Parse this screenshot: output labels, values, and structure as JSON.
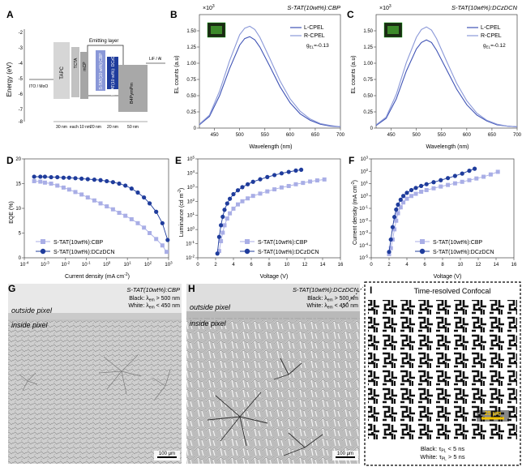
{
  "panels": {
    "A": {
      "letter": "A",
      "ylabel": "Energy (eV)",
      "yticks": [
        "-2",
        "-3",
        "-4",
        "-5",
        "-6",
        "-7",
        "-8"
      ],
      "ylim": [
        -8,
        -2
      ],
      "anode_label": "ITO / MoO",
      "cathode_label": "LiF / Al",
      "emitting_layer_label": "Emitting layer",
      "layers": [
        "TAPC",
        "TCTA",
        "mCP",
        "S-TAT(10 wt%):CBP",
        "S-TAT(10 wt%): DCzDCN",
        "B4PymPm"
      ],
      "thicknesses": [
        "30 nm",
        "each 10 nm",
        "20 nm",
        "20 nm",
        "50 nm"
      ],
      "colors": {
        "gray_light": "#d6d6d6",
        "gray_mid": "#c2c2c2",
        "gray_dark": "#a6a6a6",
        "cbp_blue": "#8a98d8",
        "dcz_blue": "#1f3c9c",
        "etl_gray": "#a8a8a8"
      }
    },
    "B": {
      "letter": "B",
      "title": "S-TAT(10wt%):CBP",
      "exponent": "×10",
      "exponent_power": "3",
      "ylabel": "EL counts (a.u)",
      "xlabel": "Wavelength (nm)",
      "legend": [
        "L-CPEL",
        "R-CPEL"
      ],
      "g_el_label": "g",
      "g_el_sub": "EL",
      "g_el_value": "=-0.13"
    },
    "C": {
      "letter": "C",
      "title": "S-TAT(10wt%):DCzDCN",
      "exponent": "×10",
      "exponent_power": "3",
      "ylabel": "EL counts (a.u)",
      "xlabel": "Wavelength (nm)",
      "legend": [
        "L-CPEL",
        "R-CPEL"
      ],
      "g_el_label": "g",
      "g_el_sub": "EL",
      "g_el_value": "=-0.12"
    },
    "D": {
      "letter": "D",
      "ylabel": "EQE (%)",
      "xlabel": "Current density (mA cm",
      "xlabel_sup": "-2",
      "legend": [
        "S-TAT(10wt%):CBP",
        "S-TAT(10wt%):DCzDCN"
      ]
    },
    "E": {
      "letter": "E",
      "ylabel": "Luminance (cd m",
      "ylabel_sup": "-2",
      "xlabel": "Voltage (V)",
      "legend": [
        "S-TAT(10wt%):CBP",
        "S-TAT(10wt%):DCzDCN"
      ]
    },
    "F": {
      "letter": "F",
      "ylabel": "Current density (mA cm",
      "ylabel_sup": "-2",
      "xlabel": "Voltage (V)",
      "legend": [
        "S-TAT(10wt%):CBP",
        "S-TAT(10wt%):DCzDCN"
      ]
    },
    "G": {
      "letter": "G",
      "title": "S-TAT(10wt%):CBP",
      "black_text": "Black: λ",
      "black_sub": "em",
      "black_value": " > 500 nm",
      "white_text": "White: λ",
      "white_sub": "em",
      "white_value": " < 450 nm",
      "outside": "outside pixel",
      "inside": "inside pixel",
      "scalebar": "100 μm"
    },
    "H": {
      "letter": "H",
      "title": "S-TAT(10wt%):DCzDCN",
      "black_text": "Black: λ",
      "black_sub": "em",
      "black_value": " > 500 nm",
      "white_text": "White: λ",
      "white_sub": "em",
      "white_value": " < 450 nm",
      "outside": "outside pixel",
      "inside": "inside pixel",
      "scalebar": "100 μm"
    },
    "I": {
      "letter": "I",
      "title": "Time-resolved Confocal",
      "black_text": "Black: τ",
      "black_sub": "PL",
      "black_value": " < 5 ns",
      "white_text": "White: τ",
      "white_sub": "PL",
      "white_value": " > 5 ns",
      "scalebar": "25 μm",
      "scalebar_color": "#f2c200"
    }
  },
  "colors": {
    "cbp": "#a9aee6",
    "dcz": "#1f3c9c",
    "lcpel": "#3f53b5",
    "rcpel": "#8a98d8"
  },
  "chart_data": [
    {
      "panel": "B",
      "type": "line",
      "xlabel": "Wavelength (nm)",
      "ylabel": "EL counts (a.u)",
      "xlim": [
        420,
        700
      ],
      "ylim": [
        0,
        1.75
      ],
      "xticks": [
        450,
        500,
        550,
        600,
        650,
        700
      ],
      "yticks": [
        0,
        0.25,
        0.5,
        0.75,
        1.0,
        1.25,
        1.5
      ],
      "x": [
        420,
        440,
        460,
        480,
        500,
        510,
        520,
        530,
        540,
        560,
        580,
        600,
        620,
        640,
        660,
        680,
        700
      ],
      "series": [
        {
          "name": "L-CPEL",
          "values": [
            0.05,
            0.18,
            0.5,
            0.92,
            1.28,
            1.38,
            1.41,
            1.36,
            1.25,
            0.95,
            0.64,
            0.39,
            0.22,
            0.12,
            0.06,
            0.03,
            0.02
          ]
        },
        {
          "name": "R-CPEL",
          "values": [
            0.06,
            0.2,
            0.57,
            1.04,
            1.44,
            1.54,
            1.57,
            1.52,
            1.4,
            1.07,
            0.73,
            0.45,
            0.26,
            0.14,
            0.07,
            0.04,
            0.02
          ]
        }
      ]
    },
    {
      "panel": "C",
      "type": "line",
      "xlabel": "Wavelength (nm)",
      "ylabel": "EL counts (a.u)",
      "xlim": [
        420,
        700
      ],
      "ylim": [
        0,
        1.75
      ],
      "xticks": [
        450,
        500,
        550,
        600,
        650,
        700
      ],
      "yticks": [
        0,
        0.25,
        0.5,
        0.75,
        1.0,
        1.25,
        1.5
      ],
      "x": [
        420,
        440,
        460,
        480,
        500,
        510,
        520,
        530,
        540,
        560,
        580,
        600,
        620,
        640,
        660,
        680,
        700
      ],
      "series": [
        {
          "name": "L-CPEL",
          "values": [
            0.04,
            0.15,
            0.45,
            0.88,
            1.22,
            1.32,
            1.36,
            1.32,
            1.2,
            0.9,
            0.6,
            0.36,
            0.2,
            0.11,
            0.05,
            0.03,
            0.02
          ]
        },
        {
          "name": "R-CPEL",
          "values": [
            0.05,
            0.17,
            0.52,
            1.01,
            1.4,
            1.52,
            1.56,
            1.51,
            1.38,
            1.03,
            0.69,
            0.42,
            0.23,
            0.12,
            0.06,
            0.03,
            0.02
          ]
        }
      ]
    },
    {
      "panel": "D",
      "type": "scatter",
      "xscale": "log",
      "xlabel": "Current density (mA cm-2)",
      "ylabel": "EQE (%)",
      "xlim": [
        0.0001,
        1000
      ],
      "ylim": [
        0,
        20
      ],
      "xticks": [
        "10-4",
        "10-3",
        "10-2",
        "10-1",
        "10^0",
        "10^1",
        "10^2",
        "10^3"
      ],
      "yticks": [
        0,
        5,
        10,
        15,
        20
      ],
      "series": [
        {
          "name": "S-TAT(10wt%):CBP",
          "x": [
            0.0003,
            0.0006,
            0.001,
            0.002,
            0.004,
            0.008,
            0.015,
            0.03,
            0.06,
            0.12,
            0.25,
            0.5,
            1,
            2,
            4,
            8,
            16,
            32,
            64,
            120,
            250,
            500,
            800
          ],
          "y": [
            15.5,
            15.4,
            15.2,
            15.0,
            14.6,
            14.2,
            13.8,
            13.3,
            12.8,
            12.2,
            11.6,
            11.0,
            10.4,
            9.8,
            9.1,
            8.5,
            7.8,
            7.0,
            6.1,
            5.0,
            3.8,
            2.5,
            1.2
          ]
        },
        {
          "name": "S-TAT(10wt%):DCzDCN",
          "x": [
            0.0003,
            0.0006,
            0.001,
            0.002,
            0.004,
            0.008,
            0.015,
            0.03,
            0.06,
            0.12,
            0.25,
            0.5,
            1,
            2,
            4,
            8,
            16,
            32,
            64,
            120,
            250,
            500,
            900
          ],
          "y": [
            16.4,
            16.4,
            16.4,
            16.3,
            16.3,
            16.2,
            16.2,
            16.1,
            16.0,
            15.9,
            15.8,
            15.7,
            15.5,
            15.3,
            15.0,
            14.6,
            14.0,
            13.2,
            12.2,
            11.0,
            9.3,
            7.0,
            3.6
          ]
        }
      ]
    },
    {
      "panel": "E",
      "type": "scatter",
      "yscale": "log",
      "xlabel": "Voltage (V)",
      "ylabel": "Luminance (cd m-2)",
      "xlim": [
        0,
        16
      ],
      "ylim": [
        0.01,
        100000
      ],
      "xticks": [
        0,
        2,
        4,
        6,
        8,
        10,
        12,
        14,
        16
      ],
      "yticks": [
        "10-2",
        "10-1",
        "10^0",
        "10^1",
        "10^2",
        "10^3",
        "10^4",
        "10^5"
      ],
      "series": [
        {
          "name": "S-TAT(10wt%):CBP",
          "x": [
            2.4,
            2.6,
            2.8,
            3.0,
            3.3,
            3.6,
            4.0,
            4.5,
            5.0,
            5.6,
            6.2,
            7.0,
            7.8,
            8.6,
            9.4,
            10.2,
            11.0,
            11.8,
            12.6,
            13.4,
            14.2
          ],
          "y": [
            0.03,
            0.15,
            0.6,
            2,
            6,
            14,
            30,
            60,
            100,
            160,
            240,
            350,
            500,
            700,
            950,
            1200,
            1600,
            2000,
            2500,
            3000,
            3500
          ]
        },
        {
          "name": "S-TAT(10wt%):DCzDCN",
          "x": [
            2.2,
            2.4,
            2.6,
            2.8,
            3.0,
            3.3,
            3.6,
            4.0,
            4.5,
            5.0,
            5.6,
            6.2,
            7.0,
            7.8,
            8.6,
            9.4,
            10.2,
            11.0,
            11.6
          ],
          "y": [
            0.02,
            0.3,
            2,
            8,
            25,
            70,
            150,
            320,
            600,
            1000,
            1600,
            2400,
            3600,
            5200,
            7200,
            9500,
            12000,
            15000,
            17000
          ]
        }
      ]
    },
    {
      "panel": "F",
      "type": "scatter",
      "yscale": "log",
      "xlabel": "Voltage (V)",
      "ylabel": "Current density (mA cm-2)",
      "xlim": [
        0,
        16
      ],
      "ylim": [
        1e-05,
        1000
      ],
      "xticks": [
        0,
        2,
        4,
        6,
        8,
        10,
        12,
        14,
        16
      ],
      "yticks": [
        "10-5",
        "10-4",
        "10-3",
        "10-2",
        "10-1",
        "10^0",
        "10^1",
        "10^2",
        "10^3"
      ],
      "series": [
        {
          "name": "S-TAT(10wt%):CBP",
          "x": [
            2.0,
            2.2,
            2.4,
            2.6,
            2.8,
            3.0,
            3.3,
            3.6,
            4.0,
            4.5,
            5.0,
            5.6,
            6.2,
            7.0,
            7.8,
            8.6,
            9.4,
            10.2,
            11.0,
            11.8,
            12.6,
            13.4,
            14.2
          ],
          "y": [
            2e-05,
            6e-05,
            0.0003,
            0.002,
            0.01,
            0.04,
            0.12,
            0.3,
            0.6,
            1.0,
            1.5,
            2.2,
            3.0,
            4.2,
            5.8,
            7.8,
            10.5,
            14,
            19,
            26,
            36,
            55,
            90
          ]
        },
        {
          "name": "S-TAT(10wt%):DCzDCN",
          "x": [
            2.0,
            2.2,
            2.4,
            2.6,
            2.8,
            3.0,
            3.3,
            3.6,
            4.0,
            4.5,
            5.0,
            5.6,
            6.2,
            7.0,
            7.8,
            8.6,
            9.4,
            10.2,
            11.0,
            11.6
          ],
          "y": [
            3e-05,
            0.0003,
            0.003,
            0.02,
            0.08,
            0.2,
            0.5,
            1.0,
            1.8,
            3.0,
            4.5,
            6.5,
            9.0,
            13,
            19,
            28,
            42,
            65,
            110,
            160
          ]
        }
      ]
    }
  ]
}
